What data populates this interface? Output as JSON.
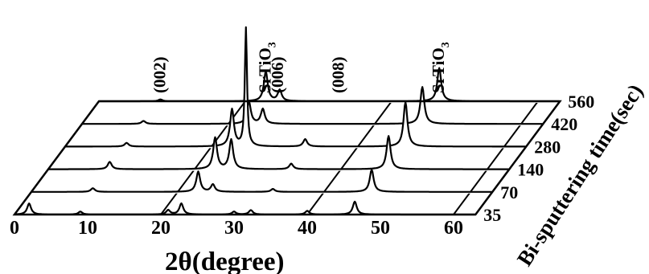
{
  "chart_data": {
    "type": "line",
    "layout": "3d-waterfall",
    "xlabel": "2θ(degree)",
    "zlabel": "Bi-sputtering time(sec)",
    "x_ticks": [
      "0",
      "10",
      "20",
      "30",
      "40",
      "50",
      "60"
    ],
    "xlim": [
      0,
      63
    ],
    "z_ticks": [
      "35",
      "70",
      "140",
      "280",
      "420",
      "560"
    ],
    "peak_labels": [
      {
        "text": "(002)",
        "x": 8.4
      },
      {
        "text": "SrTiO3",
        "x": 22.8
      },
      {
        "text": "(006)",
        "x": 24.5
      },
      {
        "text": "(008)",
        "x": 32.8
      },
      {
        "text": "SrTiO3",
        "x": 46.5
      }
    ],
    "series": [
      {
        "z_label": "35",
        "peaks": [
          {
            "x": 2.0,
            "h": 0.3
          },
          {
            "x": 9.0,
            "h": 0.08
          },
          {
            "x": 21.0,
            "h": 0.12
          },
          {
            "x": 22.8,
            "h": 0.3
          },
          {
            "x": 30.0,
            "h": 0.08
          },
          {
            "x": 32.3,
            "h": 0.12
          },
          {
            "x": 40.0,
            "h": 0.1
          },
          {
            "x": 46.5,
            "h": 0.35
          }
        ]
      },
      {
        "z_label": "70",
        "peaks": [
          {
            "x": 8.4,
            "h": 0.1
          },
          {
            "x": 22.8,
            "h": 0.55
          },
          {
            "x": 24.8,
            "h": 0.2
          },
          {
            "x": 33.0,
            "h": 0.08
          },
          {
            "x": 46.5,
            "h": 0.6
          }
        ]
      },
      {
        "z_label": "140",
        "peaks": [
          {
            "x": 8.4,
            "h": 0.2
          },
          {
            "x": 22.8,
            "h": 0.85
          },
          {
            "x": 25.0,
            "h": 0.8
          },
          {
            "x": 33.2,
            "h": 0.15
          },
          {
            "x": 46.5,
            "h": 0.9
          }
        ]
      },
      {
        "z_label": "280",
        "peaks": [
          {
            "x": 8.4,
            "h": 0.1
          },
          {
            "x": 22.8,
            "h": 1.0
          },
          {
            "x": 24.7,
            "h": 3.2
          },
          {
            "x": 32.8,
            "h": 0.2
          },
          {
            "x": 46.5,
            "h": 1.2
          }
        ]
      },
      {
        "z_label": "420",
        "peaks": [
          {
            "x": 8.4,
            "h": 0.08
          },
          {
            "x": 22.8,
            "h": 0.6
          },
          {
            "x": 24.7,
            "h": 0.4
          },
          {
            "x": 46.5,
            "h": 1.0
          }
        ]
      },
      {
        "z_label": "560",
        "peaks": [
          {
            "x": 8.4,
            "h": 0.05
          },
          {
            "x": 22.8,
            "h": 0.8
          },
          {
            "x": 24.7,
            "h": 0.3
          },
          {
            "x": 46.5,
            "h": 0.9
          }
        ]
      }
    ]
  }
}
